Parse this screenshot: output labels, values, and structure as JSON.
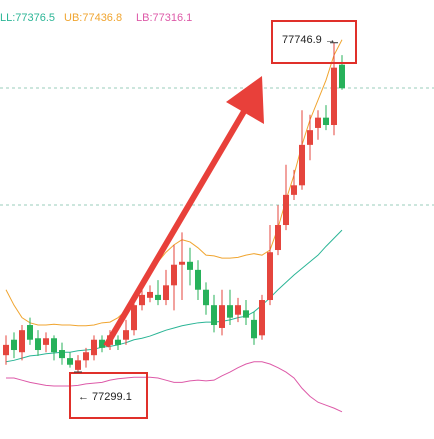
{
  "chart_data": {
    "type": "candlestick",
    "legend": [
      "LL:77376.5",
      "UB:77436.8",
      "LB:77316.1"
    ],
    "ylim": [
      77208,
      77805
    ],
    "up_color": "#e5453d",
    "down_color": "#27b15a",
    "candles": {
      "open": [
        77322,
        77343,
        77326,
        77363,
        77345,
        77336,
        77345,
        77329,
        77318,
        77302,
        77315,
        77322,
        77343,
        77336,
        77343,
        77343,
        77356,
        77390,
        77400,
        77404,
        77397,
        77417,
        77445,
        77449,
        77438,
        77411,
        77390,
        77359,
        77390,
        77377,
        77383,
        77370,
        77349,
        77397,
        77465,
        77499,
        77540,
        77553,
        77608,
        77631,
        77645,
        77635,
        77717
      ],
      "high": [
        77349,
        77353,
        77363,
        77373,
        77356,
        77353,
        77349,
        77339,
        77326,
        77322,
        77332,
        77349,
        77349,
        77356,
        77349,
        77370,
        77400,
        77417,
        77417,
        77424,
        77438,
        77472,
        77489,
        77468,
        77451,
        77421,
        77404,
        77411,
        77411,
        77400,
        77397,
        77381,
        77404,
        77499,
        77526,
        77581,
        77574,
        77655,
        77649,
        77655,
        77662,
        77746.9,
        77730
      ],
      "low": [
        77309,
        77318,
        77315,
        77336,
        77321,
        77326,
        77315,
        77309,
        77305,
        77299.1,
        77305,
        77315,
        77326,
        77329,
        77329,
        77336,
        77349,
        77383,
        77394,
        77390,
        77390,
        77383,
        77397,
        77417,
        77397,
        77377,
        77353,
        77349,
        77363,
        77367,
        77363,
        77336,
        77343,
        77390,
        77458,
        77492,
        77533,
        77547,
        77587,
        77615,
        77628,
        77621,
        77683
      ],
      "close": [
        77336,
        77329,
        77356,
        77343,
        77329,
        77345,
        77326,
        77318,
        77309,
        77315,
        77326,
        77343,
        77332,
        77349,
        77336,
        77356,
        77390,
        77404,
        77408,
        77397,
        77417,
        77445,
        77449,
        77438,
        77411,
        77390,
        77363,
        77390,
        77373,
        77390,
        77373,
        77345,
        77397,
        77462,
        77499,
        77540,
        77553,
        77608,
        77628,
        77645,
        77635,
        77713,
        77685
      ]
    },
    "series": [
      {
        "name": "UB:77436.8",
        "color": "#f0a530",
        "values": [
          77411,
          77390,
          77373,
          77366,
          77363,
          77363,
          77364,
          77363,
          77363,
          77362,
          77362,
          77363,
          77366,
          77367,
          77373,
          77383,
          77404,
          77417,
          77431,
          77449,
          77462,
          77472,
          77479,
          77476,
          77468,
          77458,
          77457,
          77454,
          77454,
          77455,
          77458,
          77460,
          77458,
          77465,
          77495,
          77533,
          77567,
          77608,
          77642,
          77669,
          77696,
          77730,
          77751
        ]
      },
      {
        "name": "LL:77376.5",
        "color": "#2bb596",
        "values": [
          77313,
          77315,
          77318,
          77321,
          77322,
          77324,
          77325,
          77326,
          77326,
          77328,
          77329,
          77330,
          77333,
          77334,
          77336,
          77339,
          77343,
          77345,
          77348,
          77352,
          77356,
          77359,
          77362,
          77364,
          77366,
          77367,
          77367,
          77368,
          77370,
          77373,
          77375,
          77381,
          77390,
          77400,
          77411,
          77421,
          77431,
          77440,
          77449,
          77458,
          77470,
          77481,
          77492
        ]
      },
      {
        "name": "LB:77316.1",
        "color": "#dd5aa8",
        "values": [
          77291,
          77291,
          77288,
          77285,
          77283,
          77281,
          77280,
          77280,
          77280,
          77281,
          77283,
          77284,
          77285,
          77288,
          77290,
          77291,
          77292,
          77292,
          77292,
          77291,
          77288,
          77285,
          77285,
          77287,
          77288,
          77287,
          77288,
          77294,
          77299,
          77305,
          77310,
          77313,
          77313,
          77310,
          77305,
          77299,
          77291,
          77277,
          77266,
          77258,
          77254,
          77250,
          77245
        ]
      }
    ],
    "annotations": [
      {
        "text": "77746.9 →",
        "value": 77746.9
      },
      {
        "text": "← 77299.1",
        "value": 77299.1
      }
    ]
  }
}
